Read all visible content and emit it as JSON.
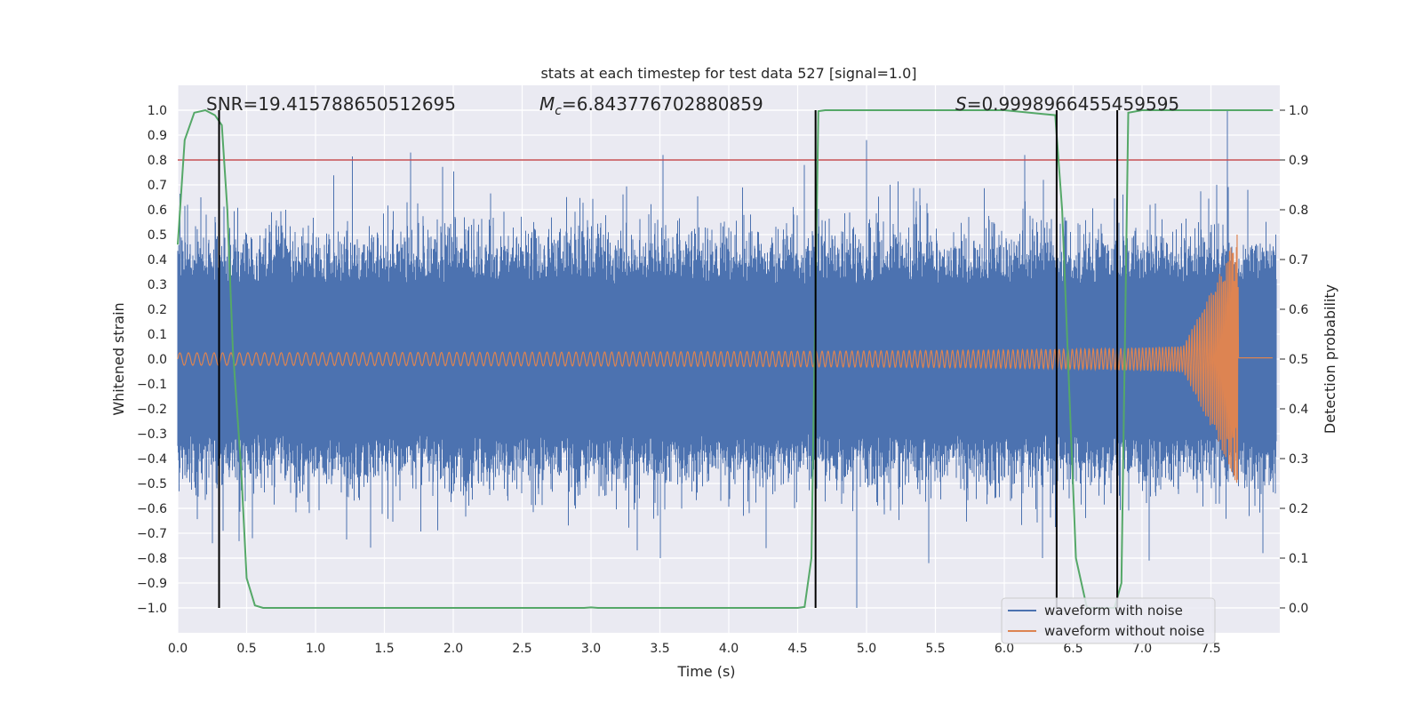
{
  "chart_data": {
    "type": "line",
    "title": "stats at each timestep for test data 527 [signal=1.0]",
    "xlabel": "Time (s)",
    "ylabel": "Whitened strain",
    "ylabel_right": "Detection probability",
    "xlim": [
      0.0,
      8.0
    ],
    "ylim": [
      -1.1,
      1.1
    ],
    "ylim_right": [
      -0.05,
      1.05
    ],
    "x_ticks": [
      "0.0",
      "0.5",
      "1.0",
      "1.5",
      "2.0",
      "2.5",
      "3.0",
      "3.5",
      "4.0",
      "4.5",
      "5.0",
      "5.5",
      "6.0",
      "6.5",
      "7.0",
      "7.5"
    ],
    "y_ticks": [
      "−1.0",
      "−0.9",
      "−0.8",
      "−0.7",
      "−0.6",
      "−0.5",
      "−0.4",
      "−0.3",
      "−0.2",
      "−0.1",
      "0.0",
      "0.1",
      "0.2",
      "0.3",
      "0.4",
      "0.5",
      "0.6",
      "0.7",
      "0.8",
      "0.9",
      "1.0"
    ],
    "y_ticks_right": [
      "0.0",
      "0.1",
      "0.2",
      "0.3",
      "0.4",
      "0.5",
      "0.6",
      "0.7",
      "0.8",
      "0.9",
      "1.0"
    ],
    "annotations": {
      "snr": "SNR=19.415788650512695",
      "mc_symbol": "M",
      "mc_sub": "c",
      "mc_value": "=6.843776702880859",
      "s_symbol": "S",
      "s_value": "=0.9998966455459595"
    },
    "threshold": {
      "value": 0.9,
      "axis": "right",
      "color": "#c44e52"
    },
    "vertical_markers": [
      0.3,
      4.63,
      6.38,
      6.82
    ],
    "series": [
      {
        "name": "waveform with noise",
        "color": "#4c72b0",
        "style": "noise",
        "amplitude_core": 0.3,
        "peaks": [
          {
            "x": 0.07,
            "y": 0.62
          },
          {
            "x": 0.17,
            "y": 0.65
          },
          {
            "x": 0.25,
            "y": -0.74
          },
          {
            "x": 0.33,
            "y": -0.69
          },
          {
            "x": 0.54,
            "y": 0.55
          },
          {
            "x": 0.54,
            "y": -0.72
          },
          {
            "x": 1.69,
            "y": 0.83
          },
          {
            "x": 3.5,
            "y": -0.8
          },
          {
            "x": 3.52,
            "y": 0.82
          },
          {
            "x": 4.27,
            "y": -0.76
          },
          {
            "x": 4.55,
            "y": 0.78
          },
          {
            "x": 4.93,
            "y": -1.0
          },
          {
            "x": 5.0,
            "y": 0.88
          },
          {
            "x": 5.45,
            "y": -0.82
          },
          {
            "x": 6.15,
            "y": 0.82
          },
          {
            "x": 6.28,
            "y": -0.8
          },
          {
            "x": 7.05,
            "y": -0.81
          },
          {
            "x": 7.62,
            "y": 1.0
          },
          {
            "x": 7.77,
            "y": 0.68
          },
          {
            "x": 7.88,
            "y": -0.78
          }
        ]
      },
      {
        "name": "waveform without noise",
        "color": "#dd8452",
        "style": "chirp",
        "amp_start": 0.025,
        "amp_peak": 0.5,
        "merger_time": 7.7,
        "ringdown_level": 0.005
      },
      {
        "name": "detection probability",
        "axis": "right",
        "color": "#55a868",
        "x": [
          0.0,
          0.05,
          0.12,
          0.2,
          0.27,
          0.32,
          0.36,
          0.4,
          0.46,
          0.5,
          0.56,
          0.62,
          1.0,
          1.5,
          2.0,
          2.5,
          2.95,
          3.0,
          3.05,
          3.5,
          4.0,
          4.5,
          4.55,
          4.6,
          4.65,
          4.7,
          5.0,
          5.5,
          6.0,
          6.37,
          6.42,
          6.47,
          6.52,
          6.6,
          6.68,
          6.75,
          6.8,
          6.85,
          6.9,
          7.0,
          7.5,
          7.95
        ],
        "y": [
          0.73,
          0.94,
          0.995,
          1.0,
          0.99,
          0.97,
          0.8,
          0.52,
          0.28,
          0.06,
          0.005,
          0.0,
          0.0,
          0.0,
          0.0,
          0.0,
          0.0,
          0.001,
          0.0,
          0.0,
          0.0,
          0.0,
          0.002,
          0.1,
          0.998,
          1.0,
          1.0,
          1.0,
          1.0,
          0.99,
          0.8,
          0.45,
          0.1,
          0.0,
          0.0,
          0.0,
          0.0,
          0.05,
          0.995,
          1.0,
          1.0,
          1.0
        ]
      }
    ],
    "legend": {
      "placement": "lower-right",
      "entries": [
        {
          "label": "waveform with noise",
          "color": "#4c72b0"
        },
        {
          "label": "waveform without noise",
          "color": "#dd8452"
        }
      ]
    },
    "background_color": "#eaeaf2",
    "grid": true
  }
}
